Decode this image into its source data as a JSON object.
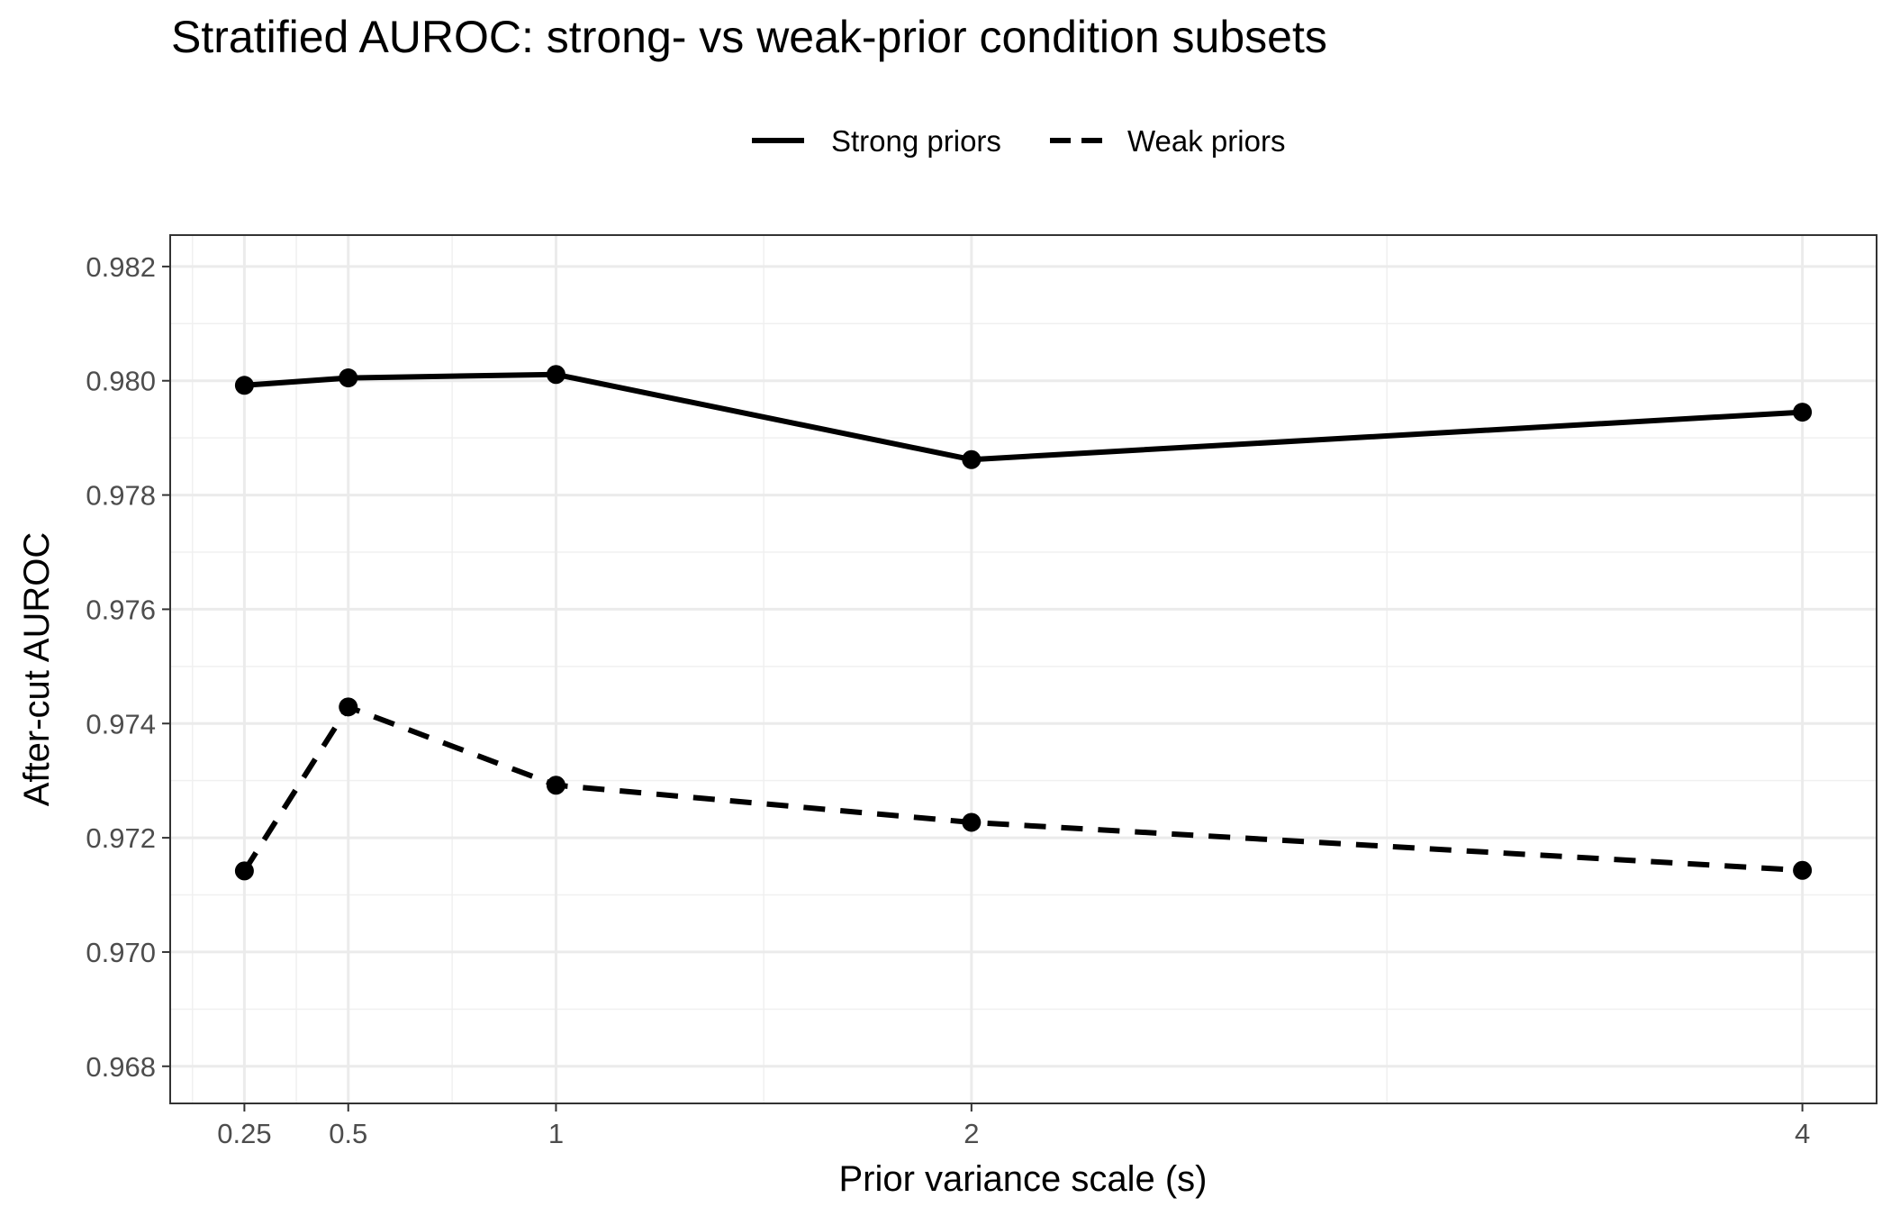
{
  "chart_data": {
    "type": "line",
    "title": "Stratified AUROC: strong- vs weak-prior condition subsets",
    "xlabel": "Prior variance scale (s)",
    "ylabel": "After-cut AUROC",
    "x": [
      0.25,
      0.5,
      1,
      2,
      4
    ],
    "x_tick_labels": [
      "0.25",
      "0.5",
      "1",
      "2",
      "4"
    ],
    "x_scale": "linear",
    "xlim": [
      0.0714,
      4.1786
    ],
    "ylim": [
      0.96735,
      0.98255
    ],
    "y_ticks": [
      0.968,
      0.97,
      0.972,
      0.974,
      0.976,
      0.978,
      0.98,
      0.982
    ],
    "y_tick_labels": [
      "0.968",
      "0.970",
      "0.972",
      "0.974",
      "0.976",
      "0.978",
      "0.980",
      "0.982"
    ],
    "grid": true,
    "legend_position": "top",
    "series": [
      {
        "name": "Strong priors",
        "line_style": "solid",
        "color": "#000000",
        "values": [
          0.97992,
          0.98005,
          0.98011,
          0.97862,
          0.97945
        ]
      },
      {
        "name": "Weak priors",
        "line_style": "dashed",
        "color": "#000000",
        "values": [
          0.97142,
          0.97429,
          0.97292,
          0.97227,
          0.97143
        ]
      }
    ]
  }
}
